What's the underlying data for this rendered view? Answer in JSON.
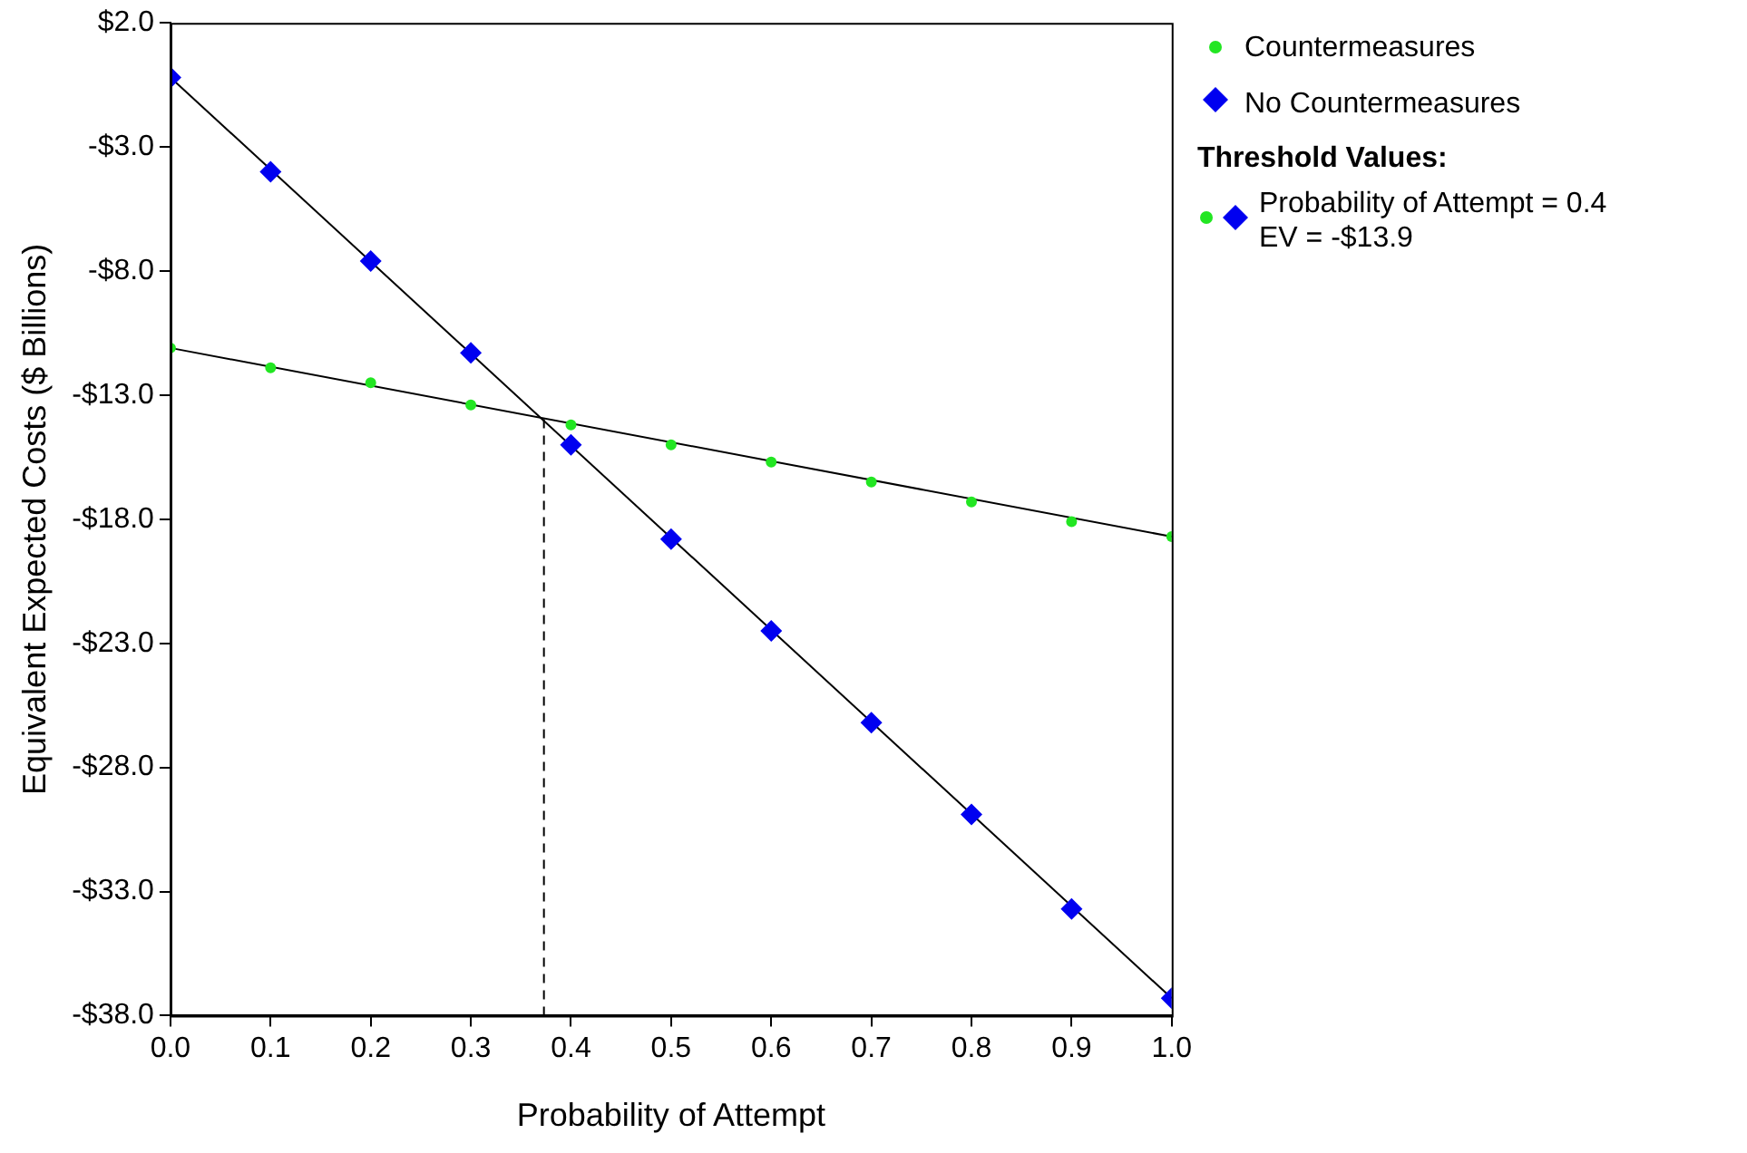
{
  "chart_data": {
    "type": "scatter",
    "xlabel": "Probability of Attempt",
    "ylabel": "Equivalent Expected Costs ($ Billions)",
    "x": [
      0,
      0.1,
      0.2,
      0.3,
      0.4,
      0.5,
      0.6,
      0.7,
      0.8,
      0.9,
      1.0
    ],
    "series": [
      {
        "name": "Countermeasures",
        "color": "#22e622",
        "marker": "circle",
        "values": [
          -11.1,
          -11.9,
          -12.5,
          -13.4,
          -14.2,
          -15.0,
          -15.7,
          -16.5,
          -17.3,
          -18.1,
          -18.7
        ]
      },
      {
        "name": "No Countermeasures",
        "color": "#0000f0",
        "marker": "diamond",
        "values": [
          -0.2,
          -4.0,
          -7.6,
          -11.3,
          -15.0,
          -18.8,
          -22.5,
          -26.2,
          -29.9,
          -33.7,
          -37.3
        ]
      },
      {
        "type": "line",
        "color": "#000000",
        "marker": "none",
        "x": [
          0,
          1.0
        ],
        "values": [
          -11.1,
          -18.7
        ]
      },
      {
        "type": "line",
        "color": "#000000",
        "marker": "none",
        "x": [
          0,
          1.0
        ],
        "values": [
          -0.2,
          -37.3
        ]
      },
      {
        "type": "line",
        "color": "#000000",
        "marker": "none",
        "line_style": "dashed",
        "x": [
          0.373,
          0.373
        ],
        "values": [
          -38.0,
          -13.9
        ]
      }
    ],
    "xlim": [
      0,
      1.0
    ],
    "xticks": [
      {
        "value": 0,
        "label": "0.0"
      },
      {
        "value": 0.1,
        "label": "0.1"
      },
      {
        "value": 0.2,
        "label": "0.2"
      },
      {
        "value": 0.3,
        "label": "0.3"
      },
      {
        "value": 0.4,
        "label": "0.4"
      },
      {
        "value": 0.5,
        "label": "0.5"
      },
      {
        "value": 0.6,
        "label": "0.6"
      },
      {
        "value": 0.7,
        "label": "0.7"
      },
      {
        "value": 0.8,
        "label": "0.8"
      },
      {
        "value": 0.9,
        "label": "0.9"
      },
      {
        "value": 1.0,
        "label": "1.0"
      }
    ],
    "ylim": [
      -38.0,
      2.0
    ],
    "yticks": [
      {
        "value": -38,
        "label": "-$38.0"
      },
      {
        "value": -33,
        "label": "-$33.0"
      },
      {
        "value": -28,
        "label": "-$28.0"
      },
      {
        "value": -23,
        "label": "-$23.0"
      },
      {
        "value": -18,
        "label": "-$18.0"
      },
      {
        "value": -13,
        "label": "-$13.0"
      },
      {
        "value": -8,
        "label": "-$8.0"
      },
      {
        "value": -3,
        "label": "-$3.0"
      },
      {
        "value": 2,
        "label": "$2.0"
      }
    ],
    "grid": false,
    "legend": "right",
    "annotations": [
      "Threshold Values:",
      "Probability of Attempt = 0.4",
      "EV = -$13.9"
    ]
  }
}
